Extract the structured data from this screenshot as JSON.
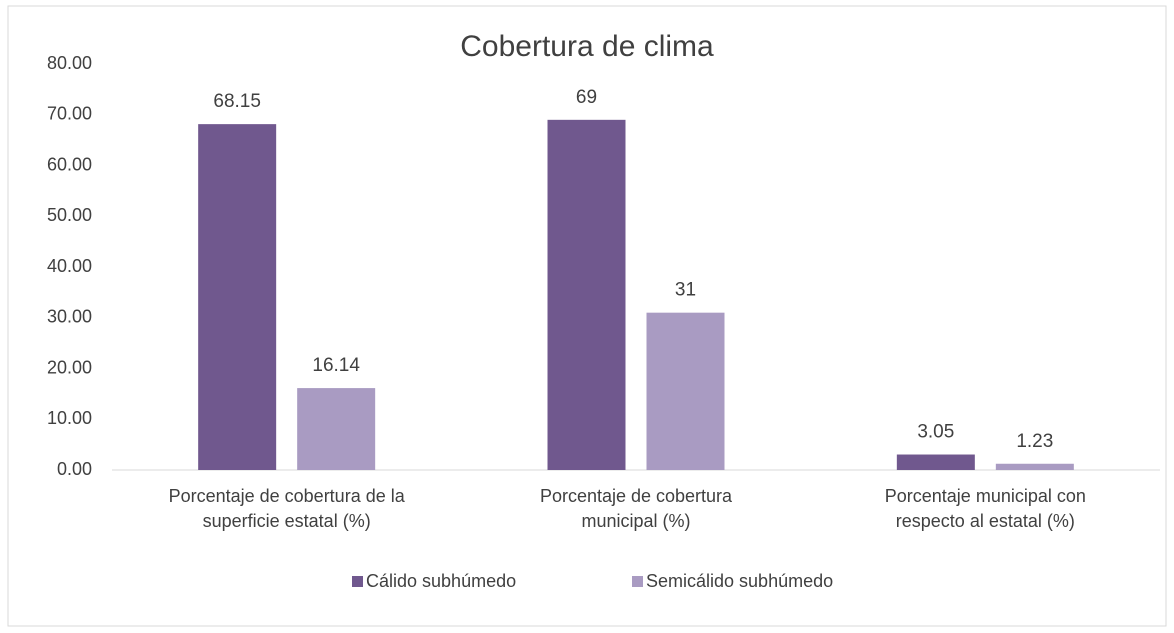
{
  "chart_data": {
    "type": "bar",
    "title": "Cobertura de clima",
    "categories": [
      [
        "Porcentaje de cobertura de la",
        "superficie estatal (%)"
      ],
      [
        "Porcentaje de cobertura",
        "municipal (%)"
      ],
      [
        "Porcentaje municipal con",
        "respecto al  estatal (%)"
      ]
    ],
    "series": [
      {
        "name": "Cálido subhúmedo",
        "color": "#70588e",
        "values": [
          68.15,
          69,
          3.05
        ]
      },
      {
        "name": "Semicálido subhúmedo",
        "color": "#a99bc2",
        "values": [
          16.14,
          31,
          1.23
        ]
      }
    ],
    "ylim": [
      0,
      80
    ],
    "yticks": [
      {
        "value": 0,
        "label": "0.00"
      },
      {
        "value": 10,
        "label": "10.00"
      },
      {
        "value": 20,
        "label": "20.00"
      },
      {
        "value": 30,
        "label": "30.00"
      },
      {
        "value": 40,
        "label": "40.00"
      },
      {
        "value": 50,
        "label": "50.00"
      },
      {
        "value": 60,
        "label": "60.00"
      },
      {
        "value": 70,
        "label": "70.00"
      },
      {
        "value": 80,
        "label": "80.00"
      }
    ],
    "grid": false,
    "legend": "bottom"
  }
}
